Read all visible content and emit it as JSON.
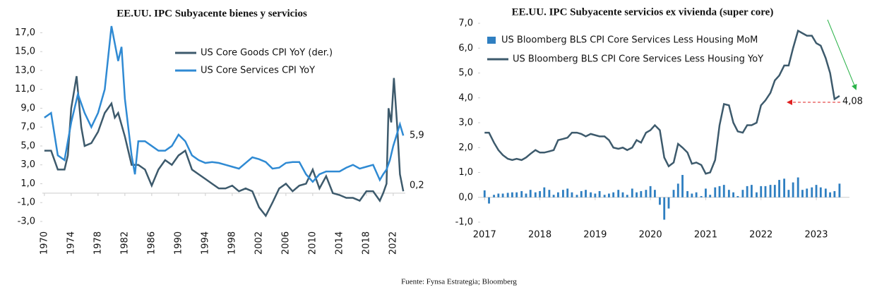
{
  "chart_data": [
    {
      "type": "line",
      "title": "EE.UU. IPC Subyacente bienes y servicios",
      "xlim": [
        1969.7,
        2023.8
      ],
      "xticks": [
        1970,
        1974,
        1978,
        1982,
        1986,
        1990,
        1994,
        1998,
        2002,
        2006,
        2010,
        2014,
        2018,
        2022
      ],
      "ylim": [
        -3,
        18
      ],
      "yticks": [
        {
          "value": -3,
          "label": "-3,0"
        },
        {
          "value": -1,
          "label": "-1,0"
        },
        {
          "value": 1,
          "label": "1,0"
        },
        {
          "value": 3,
          "label": "3,0"
        },
        {
          "value": 5,
          "label": "5,0"
        },
        {
          "value": 7,
          "label": "7,0"
        },
        {
          "value": 9,
          "label": "9,0"
        },
        {
          "value": 11,
          "label": "11,0"
        },
        {
          "value": 13,
          "label": "13,0"
        },
        {
          "value": 15,
          "label": "15,0"
        },
        {
          "value": 17,
          "label": "17,0"
        }
      ],
      "annotations": [
        "5,9",
        "0,2"
      ],
      "series": [
        {
          "name": "US Core Goods CPI YoY (der.)",
          "color": "#3d5a6c",
          "x": [
            1970,
            1971,
            1972,
            1973,
            1973.5,
            1974,
            1974.8,
            1975.5,
            1976,
            1977,
            1978,
            1979,
            1980,
            1980.5,
            1981,
            1982,
            1983,
            1984,
            1985,
            1986,
            1987,
            1988,
            1989,
            1990,
            1991,
            1992,
            1993,
            1994,
            1995,
            1996,
            1997,
            1998,
            1999,
            2000,
            2001,
            2002,
            2003,
            2004,
            2005,
            2006,
            2007,
            2008,
            2009,
            2010,
            2010.5,
            2011,
            2012,
            2013,
            2014,
            2015,
            2016,
            2017,
            2018,
            2019,
            2020,
            2020.5,
            2021,
            2021.3,
            2021.7,
            2022.1,
            2022.6,
            2023,
            2023.5
          ],
          "values": [
            4.5,
            4.5,
            2.5,
            2.5,
            4,
            9,
            12.4,
            7,
            5,
            5.3,
            6.5,
            8.5,
            9.5,
            8,
            8.5,
            6,
            3,
            3,
            2.5,
            0.8,
            2.5,
            3.5,
            3,
            4,
            4.5,
            2.5,
            2,
            1.5,
            1,
            0.5,
            0.5,
            0.8,
            0.2,
            0.5,
            0.2,
            -1.5,
            -2.4,
            -1,
            0.5,
            1,
            0.2,
            0.8,
            1,
            2.5,
            1.5,
            0.5,
            1.8,
            0,
            -0.2,
            -0.5,
            -0.5,
            -0.8,
            0.2,
            0.2,
            -0.8,
            0,
            1,
            9,
            7.5,
            12.2,
            7,
            2,
            0.2
          ]
        },
        {
          "name": "US Core Services CPI YoY",
          "color": "#2f8ad3",
          "x": [
            1970,
            1971,
            1972,
            1973,
            1974,
            1975,
            1976,
            1977,
            1978,
            1979,
            1980,
            1981,
            1981.5,
            1982,
            1983,
            1983.5,
            1984,
            1985,
            1986,
            1987,
            1988,
            1989,
            1990,
            1991,
            1992,
            1993,
            1994,
            1995,
            1996,
            1997,
            1998,
            1999,
            2000,
            2001,
            2002,
            2003,
            2004,
            2005,
            2006,
            2007,
            2008,
            2009,
            2010,
            2011,
            2012,
            2013,
            2014,
            2015,
            2016,
            2017,
            2018,
            2019,
            2020,
            2020.5,
            2021,
            2021.5,
            2022,
            2023,
            2023.5
          ],
          "values": [
            8,
            8.5,
            4,
            3.5,
            7.5,
            10.5,
            8.5,
            7,
            8.5,
            11,
            17.7,
            14,
            15.5,
            10,
            4,
            2,
            5.5,
            5.5,
            5,
            4.5,
            4.5,
            5,
            6.2,
            5.5,
            4,
            3.5,
            3.2,
            3.3,
            3.2,
            3,
            2.8,
            2.6,
            3.2,
            3.8,
            3.6,
            3.3,
            2.6,
            2.7,
            3.2,
            3.3,
            3.3,
            2,
            1.2,
            2,
            2.3,
            2.3,
            2.3,
            2.7,
            3,
            2.6,
            2.8,
            3,
            1.4,
            2,
            2.5,
            3.5,
            5,
            7.3,
            6.1
          ]
        }
      ]
    },
    {
      "type": "combo",
      "title": "EE.UU. IPC Subyacente servicios ex vivienda (super core)",
      "xlim": [
        2016.92,
        2023.6
      ],
      "xticks": [
        2017,
        2018,
        2019,
        2020,
        2021,
        2022,
        2023
      ],
      "ylim": [
        -1,
        7
      ],
      "yticks": [
        {
          "value": -1,
          "label": "-1,0"
        },
        {
          "value": 0,
          "label": "0,0"
        },
        {
          "value": 1,
          "label": "1,0"
        },
        {
          "value": 2,
          "label": "2,0"
        },
        {
          "value": 3,
          "label": "3,0"
        },
        {
          "value": 4,
          "label": "4,0"
        },
        {
          "value": 5,
          "label": "5,0"
        },
        {
          "value": 6,
          "label": "6,0"
        },
        {
          "value": 7,
          "label": "7,0"
        }
      ],
      "annotations": [
        "4,08"
      ],
      "x": [
        2017.0,
        2017.08,
        2017.17,
        2017.25,
        2017.33,
        2017.42,
        2017.5,
        2017.58,
        2017.67,
        2017.75,
        2017.83,
        2017.92,
        2018.0,
        2018.08,
        2018.17,
        2018.25,
        2018.33,
        2018.42,
        2018.5,
        2018.58,
        2018.67,
        2018.75,
        2018.83,
        2018.92,
        2019.0,
        2019.08,
        2019.17,
        2019.25,
        2019.33,
        2019.42,
        2019.5,
        2019.58,
        2019.67,
        2019.75,
        2019.83,
        2019.92,
        2020.0,
        2020.08,
        2020.17,
        2020.25,
        2020.33,
        2020.42,
        2020.5,
        2020.58,
        2020.67,
        2020.75,
        2020.83,
        2020.92,
        2021.0,
        2021.08,
        2021.17,
        2021.25,
        2021.33,
        2021.42,
        2021.5,
        2021.58,
        2021.67,
        2021.75,
        2021.83,
        2021.92,
        2022.0,
        2022.08,
        2022.17,
        2022.25,
        2022.33,
        2022.42,
        2022.5,
        2022.58,
        2022.67,
        2022.75,
        2022.83,
        2022.92,
        2023.0,
        2023.08,
        2023.17,
        2023.25,
        2023.33,
        2023.42
      ],
      "series": [
        {
          "name": "US Bloomberg BLS CPI Core Services Less Housing MoM",
          "kind": "bar",
          "color": "#2f7fc1",
          "values": [
            0.28,
            -0.25,
            0.1,
            0.15,
            0.15,
            0.18,
            0.2,
            0.2,
            0.25,
            0.15,
            0.3,
            0.2,
            0.25,
            0.4,
            0.3,
            0.1,
            0.2,
            0.3,
            0.35,
            0.2,
            0.1,
            0.25,
            0.3,
            0.2,
            0.15,
            0.25,
            0.1,
            0.15,
            0.2,
            0.3,
            0.2,
            0.1,
            0.35,
            0.2,
            0.25,
            0.3,
            0.45,
            0.3,
            -0.3,
            -0.9,
            -0.45,
            0.3,
            0.55,
            0.9,
            0.25,
            0.15,
            0.2,
            0.05,
            0.35,
            0.1,
            0.4,
            0.45,
            0.5,
            0.3,
            0.2,
            0.05,
            0.3,
            0.45,
            0.5,
            0.2,
            0.45,
            0.45,
            0.5,
            0.5,
            0.7,
            0.75,
            0.3,
            0.6,
            0.8,
            0.3,
            0.35,
            0.4,
            0.5,
            0.4,
            0.35,
            0.2,
            0.25,
            0.55
          ]
        },
        {
          "name": "US Bloomberg BLS CPI Core Services Less Housing YoY",
          "kind": "line",
          "color": "#3d5a6c",
          "values": [
            2.6,
            2.6,
            2.2,
            1.9,
            1.7,
            1.55,
            1.5,
            1.55,
            1.5,
            1.6,
            1.75,
            1.9,
            1.8,
            1.8,
            1.85,
            1.9,
            2.3,
            2.35,
            2.4,
            2.6,
            2.6,
            2.55,
            2.45,
            2.55,
            2.5,
            2.45,
            2.45,
            2.3,
            2.0,
            1.95,
            2.0,
            1.9,
            2.0,
            2.3,
            2.2,
            2.6,
            2.7,
            2.9,
            2.7,
            1.6,
            1.25,
            1.4,
            2.15,
            2.0,
            1.8,
            1.35,
            1.4,
            1.3,
            0.95,
            1.0,
            1.5,
            2.9,
            3.75,
            3.7,
            3.0,
            2.65,
            2.6,
            2.9,
            2.9,
            3.0,
            3.7,
            3.9,
            4.2,
            4.7,
            4.9,
            5.3,
            5.3,
            6.0,
            6.7,
            6.6,
            6.5,
            6.5,
            6.2,
            6.1,
            5.6,
            5.0,
            3.95,
            4.08
          ]
        }
      ]
    }
  ],
  "source": "Fuente: Fynsa Estrategia; Bloomberg"
}
